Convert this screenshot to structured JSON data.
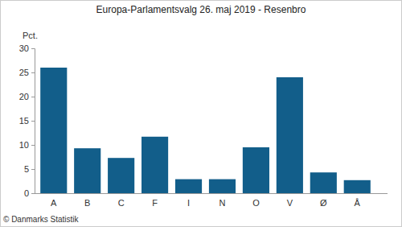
{
  "chart_data": {
    "type": "bar",
    "title": "Europa-Parlamentsvalg 26. maj 2019 - Resenbro",
    "y_label": "Pct.",
    "categories": [
      "A",
      "B",
      "C",
      "F",
      "I",
      "N",
      "O",
      "V",
      "Ø",
      "Å"
    ],
    "values": [
      26.0,
      9.3,
      7.3,
      11.7,
      2.9,
      2.9,
      9.5,
      24.0,
      4.3,
      2.7
    ],
    "color": "#125e8a",
    "ylim": [
      0,
      30
    ],
    "yticks": [
      0,
      5,
      10,
      15,
      20,
      25,
      30
    ],
    "grid": false,
    "annotations": [
      "© Danmarks Statistik"
    ]
  }
}
